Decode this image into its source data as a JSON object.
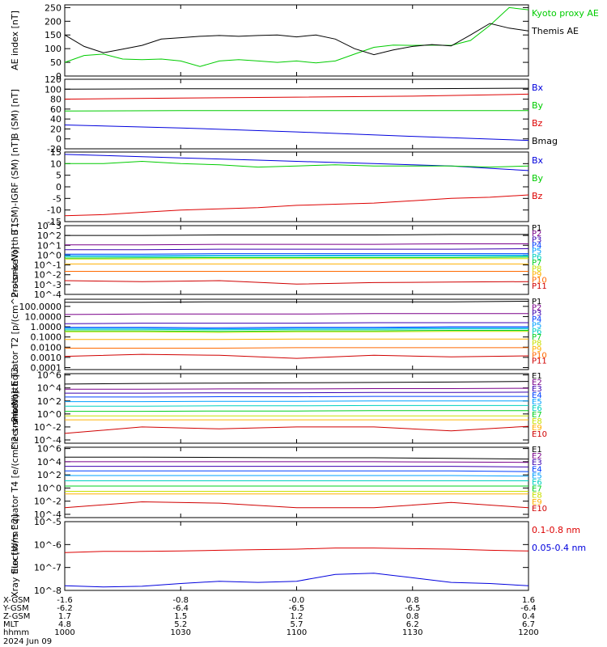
{
  "date_label": "2024 Jun 09",
  "ephemeris": {
    "rows": [
      {
        "label": "X-GSM",
        "values": [
          "-1.6",
          "-0.8",
          "-0.0",
          "0.8",
          "1.6"
        ]
      },
      {
        "label": "Y-GSM",
        "values": [
          "-6.2",
          "-6.4",
          "-6.5",
          "-6.5",
          "-6.4"
        ]
      },
      {
        "label": "Z-GSM",
        "values": [
          "1.7",
          "1.5",
          "1.2",
          "0.8",
          "0.4"
        ]
      },
      {
        "label": "MLT",
        "values": [
          "4.8",
          "5.2",
          "5.7",
          "6.2",
          "6.7"
        ]
      },
      {
        "label": "hhmm",
        "values": [
          "1000",
          "1030",
          "1100",
          "1130",
          "1200"
        ]
      }
    ]
  },
  "colors": {
    "black": "#000000",
    "red": "#dd0000",
    "green": "#00cc00",
    "blue": "#0000dd",
    "rainbow": [
      "#000000",
      "#7a008a",
      "#3b00b0",
      "#0040ff",
      "#00a0ff",
      "#00d0c0",
      "#00d020",
      "#c8e000",
      "#ffb000",
      "#ff6a00",
      "#d00000"
    ]
  },
  "chart_data": [
    {
      "type": "line",
      "ylabel": "AE index [nT]",
      "yticks": [
        "0",
        "50",
        "100",
        "150",
        "200",
        "250"
      ],
      "ylim": [
        0,
        260
      ],
      "scale": "linear",
      "x": [
        0,
        5,
        10,
        15,
        20,
        25,
        30,
        35,
        40,
        45,
        50,
        55,
        60,
        65,
        70,
        75,
        80,
        85,
        90,
        95,
        100,
        105,
        110,
        115,
        120
      ],
      "series": [
        {
          "name": "Kyoto proxy AE",
          "color": "green",
          "values": [
            50,
            75,
            80,
            62,
            60,
            62,
            55,
            35,
            55,
            60,
            55,
            50,
            55,
            48,
            55,
            80,
            105,
            113,
            112,
            113,
            112,
            130,
            185,
            250,
            242
          ]
        },
        {
          "name": "Themis AE",
          "color": "black",
          "values": [
            150,
            108,
            85,
            98,
            112,
            135,
            140,
            145,
            148,
            145,
            148,
            150,
            143,
            150,
            135,
            100,
            78,
            95,
            108,
            115,
            110,
            150,
            192,
            175,
            165
          ]
        }
      ]
    },
    {
      "type": "line",
      "ylabel": "B (SM) [nT]",
      "yticks": [
        "-20",
        "0",
        "20",
        "40",
        "60",
        "80",
        "100",
        "120"
      ],
      "ylim": [
        -20,
        120
      ],
      "scale": "linear",
      "x": [
        0,
        30,
        60,
        90,
        120
      ],
      "series": [
        {
          "name": "Bx",
          "color": "blue",
          "values": [
            28,
            22,
            14,
            5,
            -3
          ]
        },
        {
          "name": "By",
          "color": "green",
          "values": [
            56,
            57,
            57,
            57,
            57
          ]
        },
        {
          "name": "Bz",
          "color": "red",
          "values": [
            80,
            82,
            84,
            86,
            90
          ]
        },
        {
          "name": "Bmag",
          "color": "black",
          "values": [
            100,
            101,
            101,
            101,
            102
          ]
        }
      ]
    },
    {
      "type": "line",
      "ylabel": "B (SM)-IGRF (SM) [nT]",
      "yticks": [
        "-15",
        "-10",
        "-5",
        "0",
        "5",
        "10",
        "15"
      ],
      "ylim": [
        -15,
        15
      ],
      "scale": "linear",
      "x": [
        0,
        10,
        20,
        30,
        40,
        50,
        60,
        70,
        80,
        90,
        100,
        110,
        120
      ],
      "series": [
        {
          "name": "Bx",
          "color": "blue",
          "values": [
            14,
            13.5,
            13,
            12.5,
            12,
            11.5,
            11,
            10.5,
            10,
            9.5,
            9,
            8,
            7
          ]
        },
        {
          "name": "By",
          "color": "green",
          "values": [
            10,
            10,
            11,
            10,
            9.5,
            8.5,
            9,
            9.5,
            9,
            9,
            9,
            8.5,
            9
          ]
        },
        {
          "name": "Bz",
          "color": "red",
          "values": [
            -12.5,
            -12,
            -11,
            -10,
            -9.5,
            -9,
            -8,
            -7.5,
            -7,
            -6,
            -5,
            -4.5,
            -3.5
          ]
        }
      ]
    },
    {
      "type": "line",
      "ylabel": "Protons North T1",
      "yticks": [
        "10^-4",
        "10^-3",
        "10^-2",
        "10^-1",
        "10^0",
        "10^1",
        "10^2",
        "10^3"
      ],
      "ylim": [
        -4,
        3
      ],
      "scale": "log10 (values are exponents)",
      "x": [
        0,
        20,
        40,
        60,
        80,
        100,
        120
      ],
      "series": [
        {
          "name": "P1",
          "color": "rainbow.0",
          "values": [
            2.0,
            2.0,
            2.05,
            2.05,
            2.05,
            2.1,
            2.1
          ]
        },
        {
          "name": "P2",
          "color": "rainbow.1",
          "values": [
            1.05,
            1.05,
            1.1,
            1.1,
            1.1,
            1.15,
            1.15
          ]
        },
        {
          "name": "P3",
          "color": "rainbow.2",
          "values": [
            0.55,
            0.55,
            0.6,
            0.6,
            0.6,
            0.6,
            0.65
          ]
        },
        {
          "name": "P4",
          "color": "rainbow.3",
          "values": [
            0.1,
            0.1,
            0.15,
            0.15,
            0.15,
            0.15,
            0.15
          ]
        },
        {
          "name": "P5",
          "color": "rainbow.4",
          "values": [
            -0.05,
            -0.05,
            -0.02,
            -0.02,
            0.0,
            0.0,
            0.0
          ]
        },
        {
          "name": "P6",
          "color": "rainbow.5",
          "values": [
            -0.15,
            -0.15,
            -0.1,
            -0.1,
            -0.1,
            -0.1,
            -0.1
          ]
        },
        {
          "name": "P7",
          "color": "rainbow.6",
          "values": [
            -0.3,
            -0.28,
            -0.25,
            -0.25,
            -0.25,
            -0.25,
            -0.2
          ]
        },
        {
          "name": "P8",
          "color": "rainbow.7",
          "values": [
            -0.4,
            -0.4,
            -0.35,
            -0.35,
            -0.35,
            -0.35,
            -0.35
          ]
        },
        {
          "name": "P9",
          "color": "rainbow.8",
          "values": [
            -0.9,
            -0.9,
            -0.9,
            -0.9,
            -0.9,
            -0.9,
            -0.9
          ]
        },
        {
          "name": "P10",
          "color": "rainbow.9",
          "values": [
            -1.65,
            -1.65,
            -1.65,
            -1.65,
            -1.65,
            -1.65,
            -1.65
          ]
        },
        {
          "name": "P11",
          "color": "rainbow.10",
          "values": [
            -2.6,
            -2.7,
            -2.6,
            -2.95,
            -2.8,
            -2.75,
            -2.7
          ]
        }
      ]
    },
    {
      "type": "line",
      "ylabel": "Protons Equator T2 [p/(cm^2-s-sr-keV)]",
      "yticks": [
        "0.0001",
        "0.0010",
        "0.0100",
        "0.1000",
        "1.0000",
        "10.0000",
        "100.0000"
      ],
      "ylim": [
        -4.2,
        2.7
      ],
      "scale": "log10 (values are exponents)",
      "x": [
        0,
        20,
        40,
        60,
        80,
        100,
        120
      ],
      "series": [
        {
          "name": "P1",
          "color": "rainbow.0",
          "values": [
            2.4,
            2.4,
            2.45,
            2.45,
            2.45,
            2.45,
            2.5
          ]
        },
        {
          "name": "P2",
          "color": "rainbow.1",
          "values": [
            1.2,
            1.25,
            1.25,
            1.25,
            1.3,
            1.3,
            1.3
          ]
        },
        {
          "name": "P3",
          "color": "rainbow.2",
          "values": [
            0.3,
            0.35,
            0.35,
            0.35,
            0.4,
            0.4,
            0.4
          ]
        },
        {
          "name": "P4",
          "color": "rainbow.3",
          "values": [
            -0.05,
            -0.05,
            -0.1,
            -0.05,
            -0.05,
            0.0,
            0.0
          ]
        },
        {
          "name": "P5",
          "color": "rainbow.4",
          "values": [
            -0.15,
            -0.15,
            -0.2,
            -0.15,
            -0.15,
            -0.1,
            -0.1
          ]
        },
        {
          "name": "P6",
          "color": "rainbow.5",
          "values": [
            -0.25,
            -0.25,
            -0.3,
            -0.25,
            -0.25,
            -0.2,
            -0.2
          ]
        },
        {
          "name": "P7",
          "color": "rainbow.6",
          "values": [
            -0.4,
            -0.4,
            -0.45,
            -0.4,
            -0.4,
            -0.35,
            -0.35
          ]
        },
        {
          "name": "P8",
          "color": "rainbow.7",
          "values": [
            -0.5,
            -0.5,
            -0.55,
            -0.5,
            -0.5,
            -0.45,
            -0.45
          ]
        },
        {
          "name": "P9",
          "color": "rainbow.8",
          "values": [
            -1.25,
            -1.25,
            -1.25,
            -1.2,
            -1.2,
            -1.2,
            -1.2
          ]
        },
        {
          "name": "P10",
          "color": "rainbow.9",
          "values": [
            -2.1,
            -2.1,
            -2.1,
            -2.05,
            -2.05,
            -2.05,
            -2.05
          ]
        },
        {
          "name": "P11",
          "color": "rainbow.10",
          "values": [
            -2.9,
            -2.7,
            -2.8,
            -3.1,
            -2.8,
            -2.95,
            -2.85
          ]
        }
      ]
    },
    {
      "type": "line",
      "ylabel": "Electrons North T3",
      "yticks": [
        "10^-4",
        "10^-2",
        "10^0",
        "10^2",
        "10^4",
        "10^6"
      ],
      "ylim": [
        -4.5,
        6.2
      ],
      "scale": "log10 (values are exponents)",
      "x": [
        0,
        20,
        40,
        60,
        80,
        100,
        120
      ],
      "series": [
        {
          "name": "E1",
          "color": "rainbow.0",
          "values": [
            4.6,
            4.7,
            4.75,
            4.8,
            4.85,
            4.9,
            5.0
          ]
        },
        {
          "name": "E2",
          "color": "rainbow.1",
          "values": [
            3.8,
            3.8,
            3.85,
            3.85,
            3.9,
            3.9,
            3.95
          ]
        },
        {
          "name": "E3",
          "color": "rainbow.2",
          "values": [
            3.2,
            3.2,
            3.25,
            3.25,
            3.3,
            3.3,
            3.35
          ]
        },
        {
          "name": "E4",
          "color": "rainbow.3",
          "values": [
            2.6,
            2.6,
            2.65,
            2.65,
            2.7,
            2.7,
            2.7
          ]
        },
        {
          "name": "E5",
          "color": "rainbow.4",
          "values": [
            1.9,
            1.9,
            1.95,
            1.95,
            2.0,
            2.0,
            2.0
          ]
        },
        {
          "name": "E6",
          "color": "rainbow.5",
          "values": [
            1.2,
            1.2,
            1.25,
            1.25,
            1.3,
            1.3,
            1.3
          ]
        },
        {
          "name": "E7",
          "color": "rainbow.6",
          "values": [
            0.4,
            0.4,
            0.45,
            0.45,
            0.5,
            0.5,
            0.5
          ]
        },
        {
          "name": "E8",
          "color": "rainbow.7",
          "values": [
            -0.3,
            -0.3,
            -0.3,
            -0.3,
            -0.3,
            -0.3,
            -0.3
          ]
        },
        {
          "name": "E9",
          "color": "rainbow.8",
          "values": [
            -0.9,
            -0.9,
            -0.9,
            -0.9,
            -0.9,
            -0.9,
            -0.9
          ]
        },
        {
          "name": "E10",
          "color": "rainbow.10",
          "values": [
            -3.0,
            -2.0,
            -2.3,
            -2.0,
            -2.0,
            -2.6,
            -1.9
          ]
        }
      ]
    },
    {
      "type": "line",
      "ylabel": "Electrons Equator T4 [e/(cm^2-s-sr-keV)]",
      "yticks": [
        "10^-4",
        "10^-2",
        "10^0",
        "10^2",
        "10^4",
        "10^6"
      ],
      "ylim": [
        -4.5,
        6.2
      ],
      "scale": "log10 (values are exponents)",
      "x": [
        0,
        20,
        40,
        60,
        80,
        100,
        120
      ],
      "series": [
        {
          "name": "E1",
          "color": "rainbow.0",
          "values": [
            4.7,
            4.7,
            4.65,
            4.6,
            4.6,
            4.5,
            4.4
          ]
        },
        {
          "name": "E2",
          "color": "rainbow.1",
          "values": [
            4.0,
            4.0,
            4.0,
            4.0,
            4.0,
            3.95,
            3.9
          ]
        },
        {
          "name": "E3",
          "color": "rainbow.2",
          "values": [
            3.3,
            3.3,
            3.3,
            3.3,
            3.3,
            3.3,
            3.2
          ]
        },
        {
          "name": "E4",
          "color": "rainbow.3",
          "values": [
            2.6,
            2.6,
            2.6,
            2.6,
            2.6,
            2.6,
            2.5
          ]
        },
        {
          "name": "E5",
          "color": "rainbow.4",
          "values": [
            1.9,
            1.9,
            1.9,
            1.9,
            1.9,
            1.9,
            1.8
          ]
        },
        {
          "name": "E6",
          "color": "rainbow.5",
          "values": [
            1.1,
            1.1,
            1.1,
            1.1,
            1.1,
            1.1,
            1.1
          ]
        },
        {
          "name": "E7",
          "color": "rainbow.6",
          "values": [
            0.3,
            0.3,
            0.3,
            0.3,
            0.3,
            0.3,
            0.3
          ]
        },
        {
          "name": "E8",
          "color": "rainbow.7",
          "values": [
            -0.5,
            -0.5,
            -0.5,
            -0.5,
            -0.5,
            -0.5,
            -0.5
          ]
        },
        {
          "name": "E9",
          "color": "rainbow.8",
          "values": [
            -0.9,
            -0.9,
            -0.9,
            -0.9,
            -0.9,
            -0.9,
            -0.9
          ]
        },
        {
          "name": "E10",
          "color": "rainbow.10",
          "values": [
            -3.0,
            -2.1,
            -2.3,
            -3.0,
            -3.0,
            -2.2,
            -3.0
          ]
        }
      ]
    },
    {
      "type": "line",
      "ylabel": "Xray flux [W/m^2]",
      "yticks": [
        "10^-8",
        "10^-7",
        "10^-6",
        "10^-5"
      ],
      "ylim": [
        -8,
        -5
      ],
      "scale": "log10 (values are exponents)",
      "x": [
        0,
        10,
        20,
        30,
        40,
        50,
        60,
        70,
        80,
        90,
        100,
        110,
        120
      ],
      "series": [
        {
          "name": "0.1-0.8 nm",
          "color": "red",
          "values": [
            -6.35,
            -6.3,
            -6.3,
            -6.28,
            -6.25,
            -6.22,
            -6.2,
            -6.15,
            -6.15,
            -6.18,
            -6.2,
            -6.25,
            -6.28
          ]
        },
        {
          "name": "0.05-0.4 nm",
          "color": "blue",
          "values": [
            -7.8,
            -7.85,
            -7.82,
            -7.7,
            -7.6,
            -7.65,
            -7.6,
            -7.3,
            -7.25,
            -7.45,
            -7.65,
            -7.7,
            -7.8
          ]
        }
      ]
    }
  ]
}
